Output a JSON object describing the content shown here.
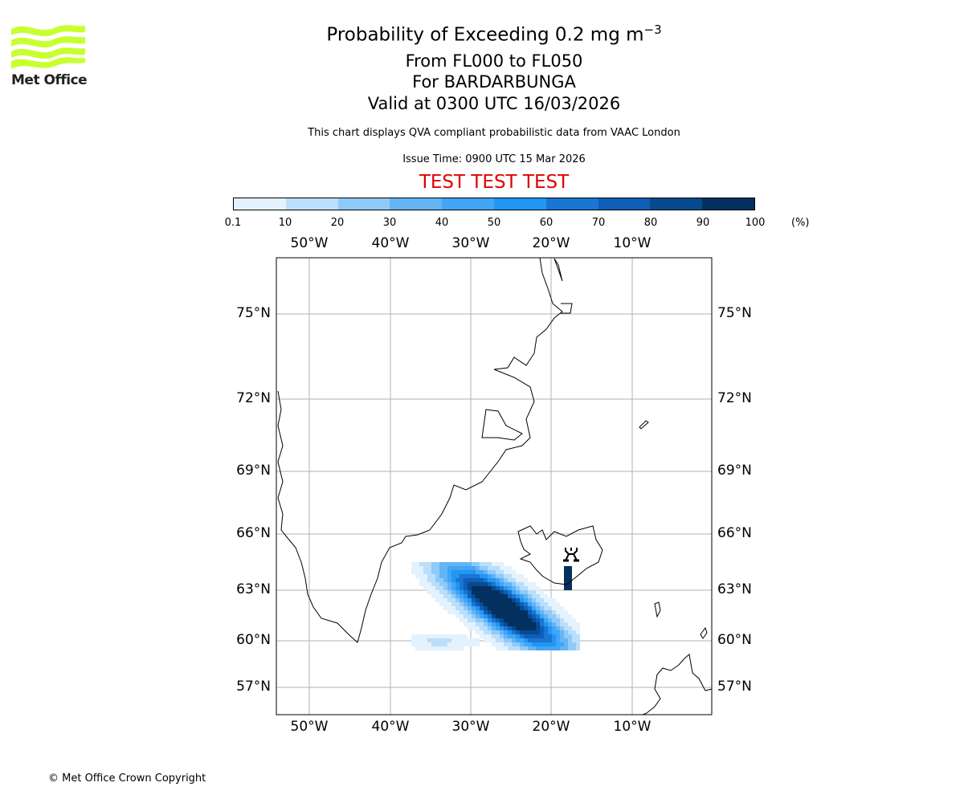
{
  "header": {
    "title_main": "Probability of Exceeding 0.2 mg m",
    "title_sup": "−3",
    "flight_levels": "From FL000 to FL050",
    "volcano": "For BARDARBUNGA",
    "valid": "Valid at 0300 UTC 16/03/2026",
    "description": "This chart displays QVA compliant probabilistic data from VAAC London",
    "issue_time": "Issue Time: 0900 UTC 15 Mar 2026",
    "test_banner": "TEST TEST TEST"
  },
  "logo": {
    "text": "Met Office",
    "color": "#c8ff2e"
  },
  "footer": {
    "copyright": "© Met Office Crown Copyright"
  },
  "chart_data": {
    "type": "heatmap",
    "title": "Probability of Exceeding 0.2 mg m−3",
    "colorbar": {
      "levels": [
        "0.1",
        "10",
        "20",
        "30",
        "40",
        "50",
        "60",
        "70",
        "80",
        "90",
        "100"
      ],
      "unit": "(%)",
      "colors": [
        "#e3f2fd",
        "#bbdefb",
        "#90caf9",
        "#64b5f6",
        "#42a5f5",
        "#2196f3",
        "#1976d2",
        "#0d5fb8",
        "#074a90",
        "#03305e"
      ]
    },
    "lon_ticks": [
      "50°W",
      "40°W",
      "30°W",
      "20°W",
      "10°W"
    ],
    "lat_ticks": [
      "75°N",
      "72°N",
      "69°N",
      "66°N",
      "63°N",
      "60°N",
      "57°N"
    ],
    "volcano_symbol": "volcano-icon",
    "plume": {
      "core_lon": -25,
      "core_lat": 61.5,
      "max_probability": 100,
      "orientation": "southwest from Iceland"
    }
  }
}
